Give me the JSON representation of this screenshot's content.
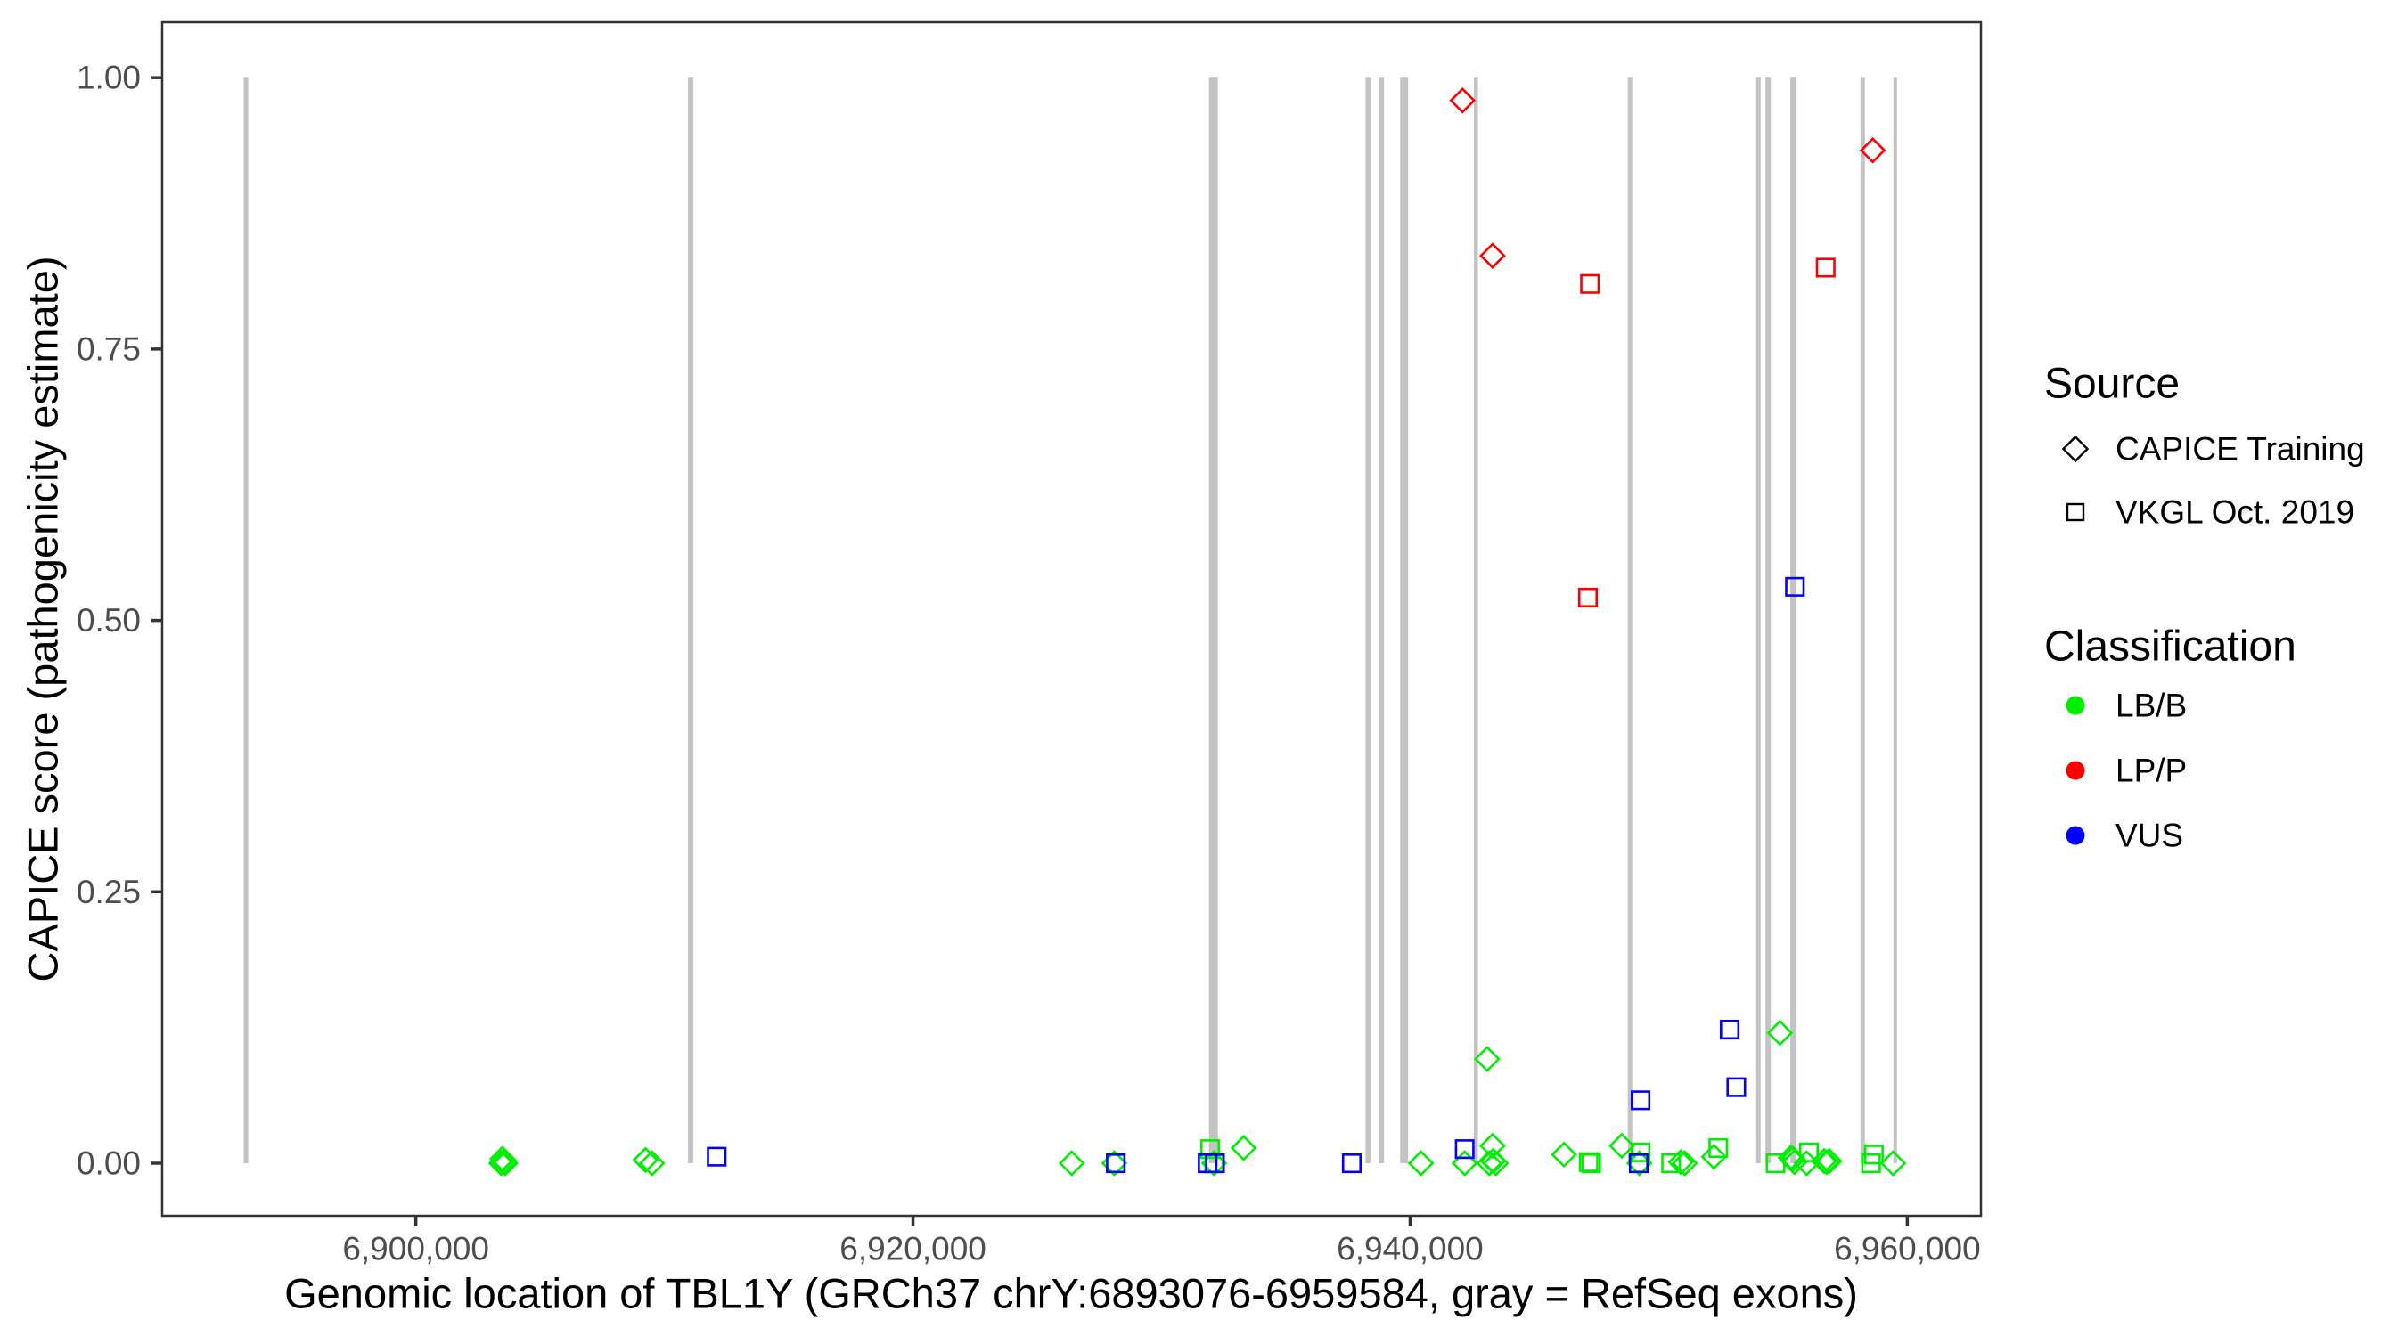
{
  "chart_data": {
    "type": "scatter",
    "title": "",
    "xlabel": "Genomic location of TBL1Y (GRCh37 chrY:6893076-6959584, gray = RefSeq exons)",
    "ylabel": "CAPICE score (pathogenicity estimate)",
    "xlim": [
      6889796,
      6962962
    ],
    "ylim": [
      -0.0484,
      1.051
    ],
    "grid": false,
    "x_ticks": [
      {
        "value": 6900000,
        "label": "6,900,000"
      },
      {
        "value": 6920000,
        "label": "6,920,000"
      },
      {
        "value": 6940000,
        "label": "6,940,000"
      },
      {
        "value": 6960000,
        "label": "6,960,000"
      }
    ],
    "y_ticks": [
      {
        "value": 0.0,
        "label": "0.00"
      },
      {
        "value": 0.25,
        "label": "0.25"
      },
      {
        "value": 0.5,
        "label": "0.50"
      },
      {
        "value": 0.75,
        "label": "0.75"
      },
      {
        "value": 1.0,
        "label": "1.00"
      }
    ],
    "exons": [
      {
        "start": 6893076,
        "end": 6893260
      },
      {
        "start": 6910950,
        "end": 6911166
      },
      {
        "start": 6931907,
        "end": 6932266
      },
      {
        "start": 6938206,
        "end": 6938404
      },
      {
        "start": 6938731,
        "end": 6938947
      },
      {
        "start": 6939596,
        "end": 6939920
      },
      {
        "start": 6942565,
        "end": 6942727
      },
      {
        "start": 6948754,
        "end": 6948933
      },
      {
        "start": 6953920,
        "end": 6954100
      },
      {
        "start": 6954294,
        "end": 6954510
      },
      {
        "start": 6955295,
        "end": 6955546
      },
      {
        "start": 6958115,
        "end": 6958295
      },
      {
        "start": 6959440,
        "end": 6959584
      }
    ],
    "series": [
      {
        "name": "LB/B",
        "color": "#00ee00",
        "points": [
          {
            "x": 6903440,
            "y": 0.0,
            "shape": "diamond"
          },
          {
            "x": 6903480,
            "y": 0.004,
            "shape": "diamond"
          },
          {
            "x": 6903520,
            "y": 0.001,
            "shape": "diamond"
          },
          {
            "x": 6903560,
            "y": 0.002,
            "shape": "diamond"
          },
          {
            "x": 6903600,
            "y": 0.0,
            "shape": "diamond"
          },
          {
            "x": 6909240,
            "y": 0.003,
            "shape": "diamond"
          },
          {
            "x": 6909500,
            "y": 0.0,
            "shape": "diamond"
          },
          {
            "x": 6926385,
            "y": 0.0,
            "shape": "diamond"
          },
          {
            "x": 6928100,
            "y": 0.0,
            "shape": "diamond"
          },
          {
            "x": 6931955,
            "y": 0.013,
            "shape": "square"
          },
          {
            "x": 6932115,
            "y": 0.0,
            "shape": "square"
          },
          {
            "x": 6932115,
            "y": 0.0,
            "shape": "diamond"
          },
          {
            "x": 6933300,
            "y": 0.014,
            "shape": "diamond"
          },
          {
            "x": 6940435,
            "y": 0.0,
            "shape": "diamond"
          },
          {
            "x": 6942195,
            "y": 0.0,
            "shape": "diamond"
          },
          {
            "x": 6943100,
            "y": 0.096,
            "shape": "diamond"
          },
          {
            "x": 6943315,
            "y": 0.016,
            "shape": "diamond"
          },
          {
            "x": 6943180,
            "y": 0.0,
            "shape": "diamond"
          },
          {
            "x": 6943330,
            "y": 0.002,
            "shape": "diamond"
          },
          {
            "x": 6943450,
            "y": 0.0,
            "shape": "diamond"
          },
          {
            "x": 6946190,
            "y": 0.008,
            "shape": "diamond"
          },
          {
            "x": 6947180,
            "y": 0.001,
            "shape": "square"
          },
          {
            "x": 6947280,
            "y": 0.0,
            "shape": "square"
          },
          {
            "x": 6948515,
            "y": 0.016,
            "shape": "diamond"
          },
          {
            "x": 6949270,
            "y": 0.01,
            "shape": "square"
          },
          {
            "x": 6949220,
            "y": 0.0,
            "shape": "diamond"
          },
          {
            "x": 6950495,
            "y": 0.0,
            "shape": "square"
          },
          {
            "x": 6950890,
            "y": 0.001,
            "shape": "diamond"
          },
          {
            "x": 6951050,
            "y": 0.0,
            "shape": "diamond"
          },
          {
            "x": 6952220,
            "y": 0.006,
            "shape": "diamond"
          },
          {
            "x": 6952395,
            "y": 0.014,
            "shape": "square"
          },
          {
            "x": 6954875,
            "y": 0.12,
            "shape": "diamond"
          },
          {
            "x": 6954700,
            "y": 0.0,
            "shape": "square"
          },
          {
            "x": 6955310,
            "y": 0.005,
            "shape": "diamond"
          },
          {
            "x": 6955400,
            "y": 0.004,
            "shape": "diamond"
          },
          {
            "x": 6955460,
            "y": 0.001,
            "shape": "diamond"
          },
          {
            "x": 6955950,
            "y": 0.0,
            "shape": "diamond"
          },
          {
            "x": 6956040,
            "y": 0.01,
            "shape": "square"
          },
          {
            "x": 6956650,
            "y": 0.002,
            "shape": "diamond"
          },
          {
            "x": 6956760,
            "y": 0.001,
            "shape": "diamond"
          },
          {
            "x": 6956860,
            "y": 0.002,
            "shape": "diamond"
          },
          {
            "x": 6958540,
            "y": 0.0,
            "shape": "square"
          },
          {
            "x": 6958655,
            "y": 0.008,
            "shape": "square"
          },
          {
            "x": 6959430,
            "y": 0.0,
            "shape": "diamond"
          }
        ]
      },
      {
        "name": "LP/P",
        "color": "#ff0000",
        "points": [
          {
            "x": 6942105,
            "y": 0.979,
            "shape": "diamond"
          },
          {
            "x": 6943315,
            "y": 0.836,
            "shape": "diamond"
          },
          {
            "x": 6958610,
            "y": 0.933,
            "shape": "diamond"
          },
          {
            "x": 6947235,
            "y": 0.81,
            "shape": "square"
          },
          {
            "x": 6947150,
            "y": 0.521,
            "shape": "square"
          },
          {
            "x": 6956715,
            "y": 0.825,
            "shape": "square"
          }
        ]
      },
      {
        "name": "VUS",
        "color": "#0000ff",
        "points": [
          {
            "x": 6912104,
            "y": 0.006,
            "shape": "square"
          },
          {
            "x": 6928160,
            "y": 0.0,
            "shape": "square"
          },
          {
            "x": 6931850,
            "y": 0.0,
            "shape": "square"
          },
          {
            "x": 6932150,
            "y": 0.0,
            "shape": "square"
          },
          {
            "x": 6937650,
            "y": 0.0,
            "shape": "square"
          },
          {
            "x": 6942195,
            "y": 0.013,
            "shape": "square"
          },
          {
            "x": 6949270,
            "y": 0.058,
            "shape": "square"
          },
          {
            "x": 6949195,
            "y": 0.0,
            "shape": "square"
          },
          {
            "x": 6952855,
            "y": 0.123,
            "shape": "square"
          },
          {
            "x": 6953120,
            "y": 0.07,
            "shape": "square"
          },
          {
            "x": 6955480,
            "y": 0.531,
            "shape": "square"
          }
        ]
      }
    ],
    "legend": {
      "position": "right",
      "source_title": "Source",
      "source_items": [
        {
          "label": "CAPICE Training",
          "shape": "diamond"
        },
        {
          "label": "VKGL Oct. 2019",
          "shape": "square"
        }
      ],
      "classification_title": "Classification",
      "classification_items": [
        {
          "label": "LB/B",
          "color": "#00ee00"
        },
        {
          "label": "LP/P",
          "color": "#ff0000"
        },
        {
          "label": "VUS",
          "color": "#0000ff"
        }
      ]
    },
    "colors": {
      "exon": "#c3c3c3",
      "axis_text": "#4d4d4d",
      "axis_title": "#000000",
      "tick": "#333333",
      "panel_border": "#333333",
      "background": "#ffffff"
    }
  }
}
